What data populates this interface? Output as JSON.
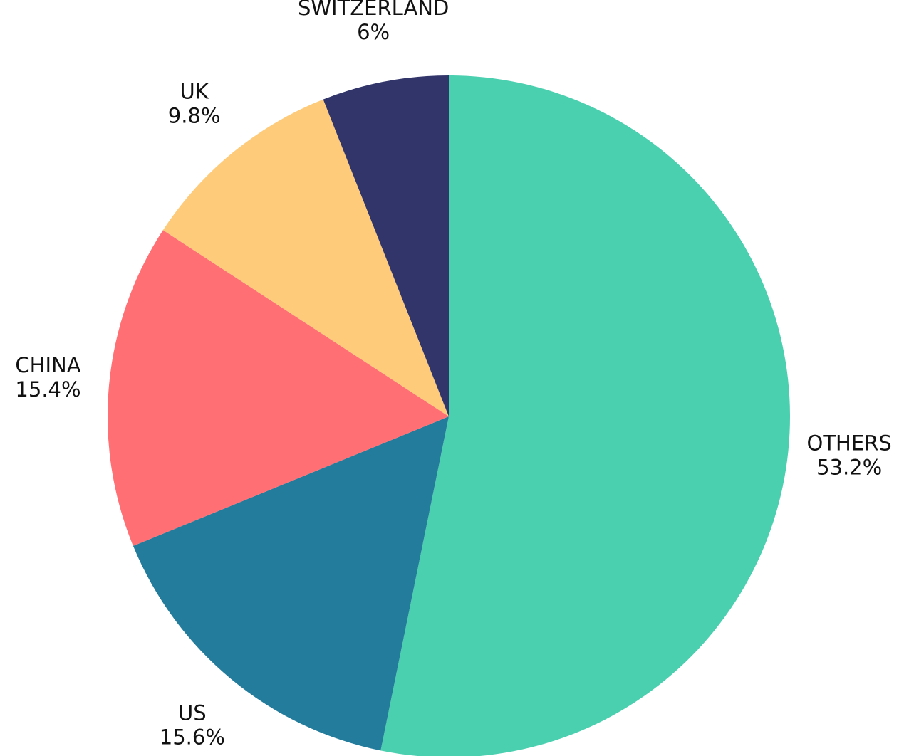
{
  "chart_data": {
    "type": "pie",
    "categories": [
      "OTHERS",
      "US",
      "CHINA",
      "UK",
      "SWITZERLAND"
    ],
    "values": [
      53.2,
      15.6,
      15.4,
      9.8,
      6
    ],
    "value_labels": [
      "53.2%",
      "15.6%",
      "15.4%",
      "9.8%",
      "6%"
    ],
    "colors": [
      "#4acfaf",
      "#247c9c",
      "#ff6f74",
      "#fecb7b",
      "#32356a"
    ]
  }
}
